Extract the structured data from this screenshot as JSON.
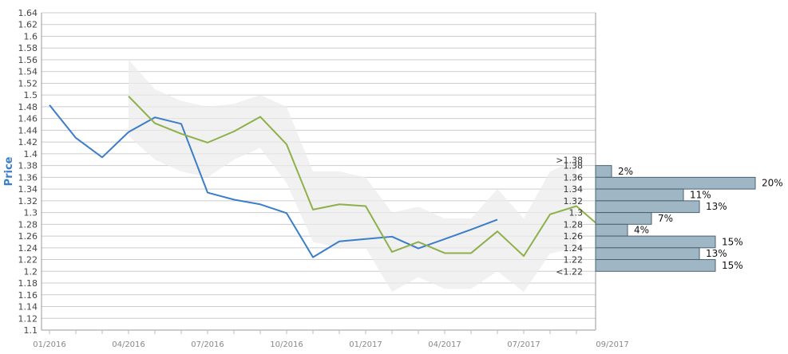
{
  "chart_data": {
    "type": "line",
    "ylabel": "Price",
    "ylim": [
      1.1,
      1.64
    ],
    "y_ticks": [
      "1.1",
      "1.12",
      "1.14",
      "1.16",
      "1.18",
      "1.2",
      "1.22",
      "1.24",
      "1.26",
      "1.28",
      "1.3",
      "1.32",
      "1.34",
      "1.36",
      "1.38",
      "1.4",
      "1.42",
      "1.44",
      "1.46",
      "1.48",
      "1.5",
      "1.52",
      "1.54",
      "1.56",
      "1.58",
      "1.6",
      "1.62",
      "1.64"
    ],
    "x_ticks": [
      "01/2016",
      "04/2016",
      "07/2016",
      "10/2016",
      "01/2017",
      "04/2017",
      "07/2017",
      "09/2017"
    ],
    "colors": {
      "actual": "#3a7dc9",
      "forecast": "#8db04a",
      "band": "#ebebeb",
      "histogram": "#9fb6c4",
      "grid": "#cccccc"
    },
    "series": [
      {
        "key": "actual",
        "x": [
          "2016-01",
          "2016-02",
          "2016-03",
          "2016-04",
          "2016-05",
          "2016-06",
          "2016-07",
          "2016-08",
          "2016-09",
          "2016-10",
          "2016-11",
          "2016-12",
          "2017-01",
          "2017-02",
          "2017-03",
          "2017-04",
          "2017-05",
          "2017-06"
        ],
        "values": [
          1.483,
          1.427,
          1.394,
          1.437,
          1.462,
          1.451,
          1.334,
          1.322,
          1.314,
          1.299,
          1.224,
          1.251,
          1.255,
          1.259,
          1.239,
          1.255,
          1.271,
          1.288
        ]
      },
      {
        "key": "forecast",
        "x": [
          "2016-04",
          "2016-05",
          "2016-06",
          "2016-07",
          "2016-08",
          "2016-09",
          "2016-10",
          "2016-11",
          "2016-12",
          "2017-01",
          "2017-02",
          "2017-03",
          "2017-04",
          "2017-05",
          "2017-06",
          "2017-07",
          "2017-08",
          "2017-09",
          "2017-10"
        ],
        "values": [
          1.498,
          1.452,
          1.434,
          1.419,
          1.438,
          1.463,
          1.416,
          1.305,
          1.314,
          1.311,
          1.233,
          1.25,
          1.231,
          1.231,
          1.268,
          1.226,
          1.297,
          1.311,
          1.272
        ]
      }
    ],
    "band": {
      "x": [
        "2016-04",
        "2016-05",
        "2016-06",
        "2016-07",
        "2016-08",
        "2016-09",
        "2016-10",
        "2016-11",
        "2016-12",
        "2017-01",
        "2017-02",
        "2017-03",
        "2017-04",
        "2017-05",
        "2017-06",
        "2017-07",
        "2017-08",
        "2017-09"
      ],
      "upper": [
        1.56,
        1.51,
        1.49,
        1.48,
        1.485,
        1.5,
        1.48,
        1.37,
        1.37,
        1.36,
        1.3,
        1.31,
        1.29,
        1.29,
        1.34,
        1.29,
        1.37,
        1.39
      ],
      "lower": [
        1.43,
        1.39,
        1.37,
        1.36,
        1.39,
        1.41,
        1.35,
        1.25,
        1.24,
        1.24,
        1.165,
        1.19,
        1.17,
        1.17,
        1.2,
        1.165,
        1.23,
        1.24
      ]
    },
    "histogram": {
      "bins": [
        ">1.38",
        "1.38",
        "1.36",
        "1.34",
        "1.32",
        "1.3",
        "1.28",
        "1.26",
        "1.24",
        "1.22",
        "<1.22"
      ],
      "bars": [
        {
          "center": 1.37,
          "value": 2,
          "label": "2%"
        },
        {
          "center": 1.35,
          "value": 20,
          "label": "20%"
        },
        {
          "center": 1.33,
          "value": 11,
          "label": "11%"
        },
        {
          "center": 1.31,
          "value": 13,
          "label": "13%"
        },
        {
          "center": 1.29,
          "value": 7,
          "label": "7%"
        },
        {
          "center": 1.27,
          "value": 4,
          "label": "4%"
        },
        {
          "center": 1.25,
          "value": 15,
          "label": "15%"
        },
        {
          "center": 1.23,
          "value": 13,
          "label": "13%"
        },
        {
          "center": 1.21,
          "value": 15,
          "label": "15%"
        }
      ]
    },
    "grid": true,
    "legend": "none"
  }
}
